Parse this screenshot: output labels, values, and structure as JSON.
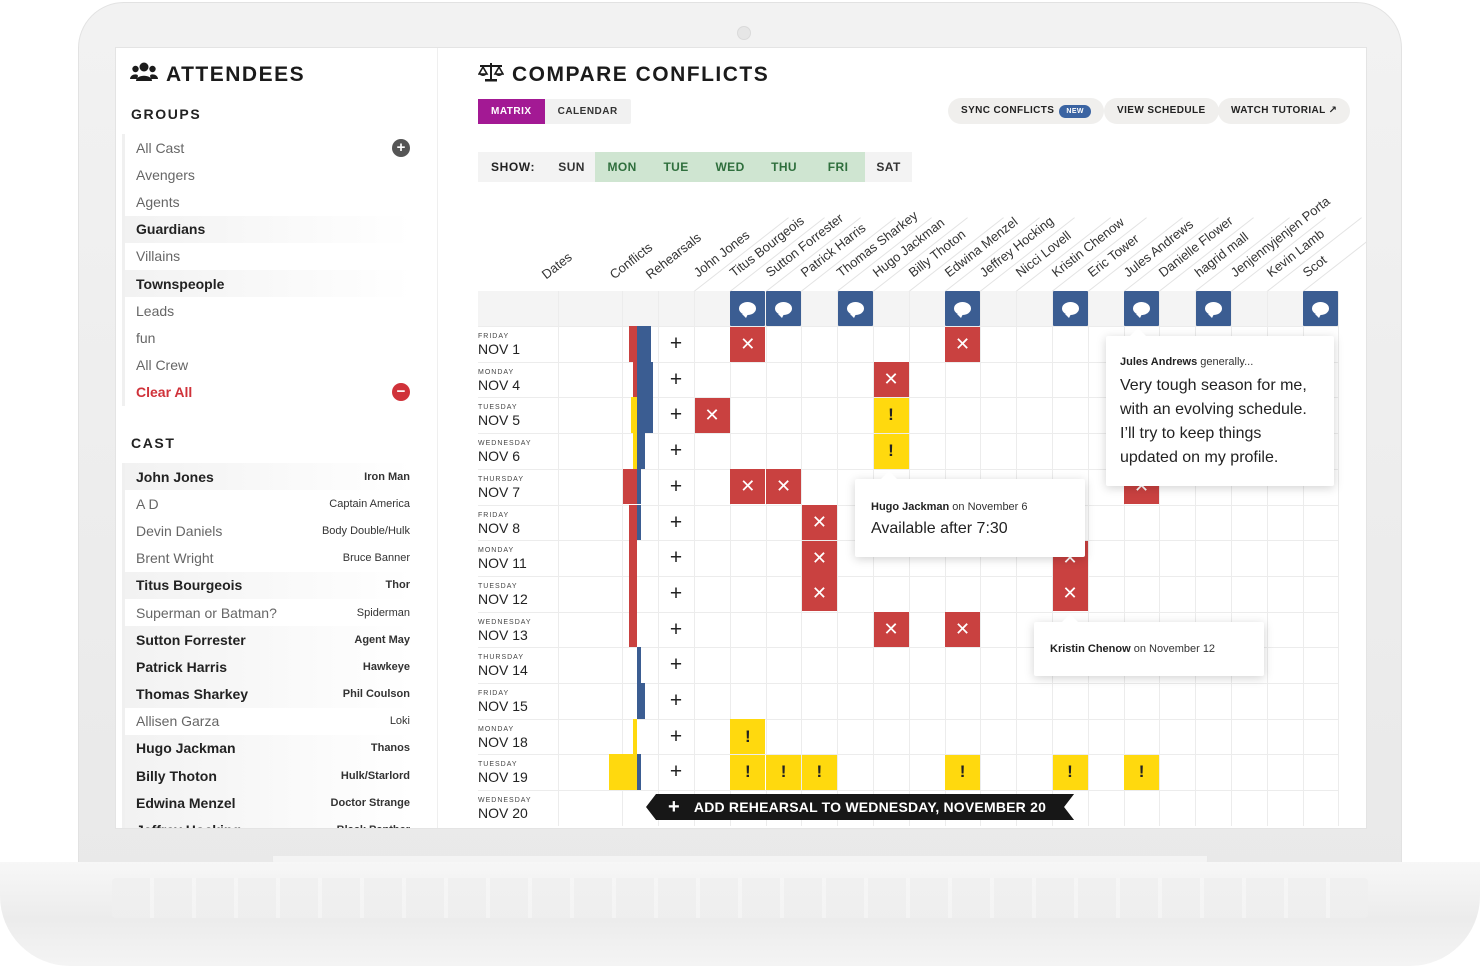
{
  "sidebar": {
    "title": "ATTENDEES",
    "groups_header": "GROUPS",
    "groups": [
      {
        "label": "All Cast",
        "bold": false,
        "action": "plus"
      },
      {
        "label": "Avengers",
        "bold": false
      },
      {
        "label": "Agents",
        "bold": false
      },
      {
        "label": "Guardians",
        "bold": true
      },
      {
        "label": "Villains",
        "bold": false
      },
      {
        "label": "Townspeople",
        "bold": true
      },
      {
        "label": "Leads",
        "bold": false
      },
      {
        "label": "fun",
        "bold": false
      },
      {
        "label": "All Crew",
        "bold": false
      },
      {
        "label": "Clear All",
        "bold": false,
        "action": "minus",
        "danger": true
      }
    ],
    "cast_header": "CAST",
    "cast": [
      {
        "name": "John Jones",
        "role": "Iron Man",
        "bold": true
      },
      {
        "name": "A D",
        "role": "Captain America",
        "bold": false
      },
      {
        "name": "Devin Daniels",
        "role": "Body Double/Hulk",
        "bold": false
      },
      {
        "name": "Brent Wright",
        "role": "Bruce Banner",
        "bold": false
      },
      {
        "name": "Titus Bourgeois",
        "role": "Thor",
        "bold": true
      },
      {
        "name": "Superman or Batman?",
        "role": "Spiderman",
        "bold": false
      },
      {
        "name": "Sutton Forrester",
        "role": "Agent May",
        "bold": true
      },
      {
        "name": "Patrick Harris",
        "role": "Hawkeye",
        "bold": true
      },
      {
        "name": "Thomas Sharkey",
        "role": "Phil Coulson",
        "bold": true
      },
      {
        "name": "Allisen Garza",
        "role": "Loki",
        "bold": false
      },
      {
        "name": "Hugo Jackman",
        "role": "Thanos",
        "bold": true
      },
      {
        "name": "Billy Thoton",
        "role": "Hulk/Starlord",
        "bold": true
      },
      {
        "name": "Edwina Menzel",
        "role": "Doctor Strange",
        "bold": true
      },
      {
        "name": "Jeffrey Hocking",
        "role": "Black Panther",
        "bold": true
      }
    ]
  },
  "main": {
    "title": "COMPARE CONFLICTS",
    "tabs": [
      {
        "label": "MATRIX",
        "active": true
      },
      {
        "label": "CALENDAR",
        "active": false
      }
    ],
    "actions": {
      "sync": "SYNC CONFLICTS",
      "sync_badge": "NEW",
      "view_schedule": "VIEW SCHEDULE",
      "watch_tutorial": "WATCH TUTORIAL ↗"
    },
    "show_label": "SHOW:",
    "days": [
      {
        "label": "SUN",
        "selected": false
      },
      {
        "label": "MON",
        "selected": true
      },
      {
        "label": "TUE",
        "selected": true
      },
      {
        "label": "WED",
        "selected": true
      },
      {
        "label": "THU",
        "selected": true
      },
      {
        "label": "FRI",
        "selected": true
      },
      {
        "label": "SAT",
        "selected": false
      }
    ]
  },
  "matrix": {
    "fixed_headers": [
      "Dates",
      "Conflicts",
      "Rehearsals"
    ],
    "people": [
      "John Jones",
      "Titus Bourgeois",
      "Sutton Forrester",
      "Patrick Harris",
      "Thomas Sharkey",
      "Hugo Jackman",
      "Billy Thoton",
      "Edwina Menzel",
      "Jeffrey Hocking",
      "Nicci Lovell",
      "Kristin Chenow",
      "Eric Tower",
      "Jules Andrews",
      "Danielle Flower",
      "hagrid mall",
      "Jenjennyjenjen Porta",
      "Kevin Lamb",
      "Scot"
    ],
    "note_columns": [
      1,
      2,
      4,
      7,
      10,
      12,
      14,
      17
    ],
    "rows": [
      {
        "dow": "FRIDAY",
        "date": "NOV 1",
        "cells": {
          "1": "x",
          "7": "x"
        },
        "bars": {
          "red": 8,
          "blue": 14
        }
      },
      {
        "dow": "MONDAY",
        "date": "NOV 4",
        "cells": {
          "5": "x"
        },
        "bars": {
          "red": 4,
          "blue": 16
        }
      },
      {
        "dow": "TUESDAY",
        "date": "NOV 5",
        "cells": {
          "0": "x",
          "5": "!"
        },
        "bars": {
          "red": 0,
          "yellow": 6,
          "blue": 16
        }
      },
      {
        "dow": "WEDNESDAY",
        "date": "NOV 6",
        "cells": {
          "5": "!"
        },
        "bars": {
          "red": 0,
          "yellow": 4,
          "blue": 8
        }
      },
      {
        "dow": "THURSDAY",
        "date": "NOV 7",
        "cells": {
          "1": "x",
          "2": "x",
          "12": "x"
        },
        "bars": {
          "red": 14,
          "blue": 4
        }
      },
      {
        "dow": "FRIDAY",
        "date": "NOV 8",
        "cells": {
          "3": "x"
        },
        "bars": {
          "red": 8,
          "blue": 4
        }
      },
      {
        "dow": "MONDAY",
        "date": "NOV 11",
        "cells": {
          "3": "x",
          "10": "x"
        },
        "bars": {
          "red": 8,
          "blue": 0
        }
      },
      {
        "dow": "TUESDAY",
        "date": "NOV 12",
        "cells": {
          "3": "x",
          "10": "x"
        },
        "bars": {
          "red": 8,
          "blue": 0
        }
      },
      {
        "dow": "WEDNESDAY",
        "date": "NOV 13",
        "cells": {
          "5": "x",
          "7": "x"
        },
        "bars": {
          "red": 8,
          "blue": 0
        }
      },
      {
        "dow": "THURSDAY",
        "date": "NOV 14",
        "cells": {},
        "bars": {
          "red": 0,
          "blue": 4
        }
      },
      {
        "dow": "FRIDAY",
        "date": "NOV 15",
        "cells": {},
        "bars": {
          "red": 0,
          "blue": 8
        }
      },
      {
        "dow": "MONDAY",
        "date": "NOV 18",
        "cells": {
          "1": "!"
        },
        "bars": {
          "red": 0,
          "yellow": 4,
          "blue": 0
        }
      },
      {
        "dow": "TUESDAY",
        "date": "NOV 19",
        "cells": {
          "1": "!",
          "2": "!",
          "3": "!",
          "7": "!",
          "10": "!",
          "12": "!"
        },
        "bars": {
          "red": 0,
          "yellow": 28,
          "blue": 4
        }
      },
      {
        "dow": "WEDNESDAY",
        "date": "NOV 20",
        "cells": {},
        "bars": {}
      }
    ],
    "add_rehearsal": "ADD REHEARSAL TO WEDNESDAY, NOVEMBER 20"
  },
  "tooltips": {
    "jules": {
      "name": "Jules Andrews",
      "suffix": " generally...",
      "message": "Very tough season for me, with an evolving schedule. I’ll try to keep things updated on my profile."
    },
    "hugo": {
      "name": "Hugo Jackman",
      "suffix": " on November 6",
      "message": "Available after 7:30"
    },
    "kristin": {
      "name": "Kristin Chenow",
      "suffix": " on November 12"
    }
  },
  "colors": {
    "accent": "#a31994",
    "conflict": "#c94140",
    "warning": "#ffd90e",
    "note": "#3b5d92",
    "selected_day": "#cfe5d1"
  }
}
